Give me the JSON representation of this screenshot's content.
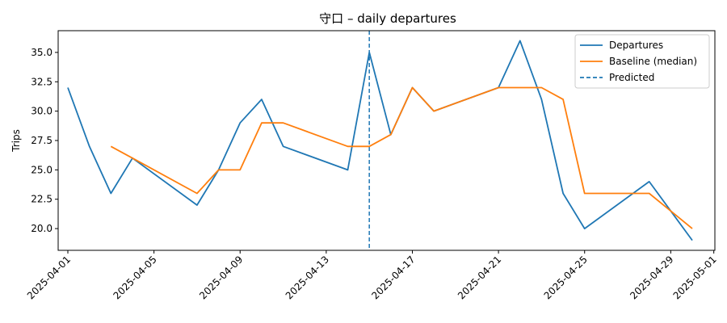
{
  "chart_data": {
    "type": "line",
    "title": "守口 – daily departures",
    "xlabel": "",
    "ylabel": "Trips",
    "ylim": [
      18.15,
      36.85
    ],
    "xlim": [
      "2025-03-31",
      "2025-05-01"
    ],
    "yticks": [
      "20.0",
      "22.5",
      "25.0",
      "27.5",
      "30.0",
      "32.5",
      "35.0"
    ],
    "xticks": [
      "2025-04-01",
      "2025-04-05",
      "2025-04-09",
      "2025-04-13",
      "2025-04-17",
      "2025-04-21",
      "2025-04-25",
      "2025-04-29",
      "2025-05-01"
    ],
    "grid": false,
    "legend_position": "top-right",
    "series": [
      {
        "name": "Departures",
        "color": "#1f77b4",
        "dash": "solid",
        "points": [
          [
            "2025-04-01",
            32
          ],
          [
            "2025-04-02",
            27
          ],
          [
            "2025-04-03",
            23
          ],
          [
            "2025-04-04",
            26
          ],
          [
            "2025-04-07",
            22
          ],
          [
            "2025-04-08",
            25
          ],
          [
            "2025-04-09",
            29
          ],
          [
            "2025-04-10",
            31
          ],
          [
            "2025-04-11",
            27
          ],
          [
            "2025-04-14",
            25
          ],
          [
            "2025-04-15",
            35
          ],
          [
            "2025-04-16",
            28
          ],
          [
            "2025-04-17",
            32
          ],
          [
            "2025-04-18",
            30
          ],
          [
            "2025-04-21",
            32
          ],
          [
            "2025-04-22",
            36
          ],
          [
            "2025-04-23",
            31
          ],
          [
            "2025-04-24",
            23
          ],
          [
            "2025-04-25",
            20
          ],
          [
            "2025-04-28",
            24
          ],
          [
            "2025-04-29",
            21.5
          ],
          [
            "2025-04-30",
            19
          ]
        ]
      },
      {
        "name": "Baseline (median)",
        "color": "#ff7f0e",
        "dash": "solid",
        "points": [
          [
            "2025-04-03",
            27
          ],
          [
            "2025-04-04",
            26
          ],
          [
            "2025-04-07",
            23
          ],
          [
            "2025-04-08",
            25
          ],
          [
            "2025-04-09",
            25
          ],
          [
            "2025-04-10",
            29
          ],
          [
            "2025-04-11",
            29
          ],
          [
            "2025-04-14",
            27
          ],
          [
            "2025-04-15",
            27
          ],
          [
            "2025-04-16",
            28
          ],
          [
            "2025-04-17",
            32
          ],
          [
            "2025-04-18",
            30
          ],
          [
            "2025-04-21",
            32
          ],
          [
            "2025-04-22",
            32
          ],
          [
            "2025-04-23",
            32
          ],
          [
            "2025-04-24",
            31
          ],
          [
            "2025-04-25",
            23
          ],
          [
            "2025-04-28",
            23
          ],
          [
            "2025-04-29",
            21.5
          ],
          [
            "2025-04-30",
            20
          ]
        ]
      }
    ],
    "vlines": [
      {
        "name": "Predicted",
        "x": "2025-04-15",
        "color": "#1f77b4",
        "dash": "dashed"
      }
    ],
    "legend": [
      "Departures",
      "Baseline (median)",
      "Predicted"
    ]
  }
}
